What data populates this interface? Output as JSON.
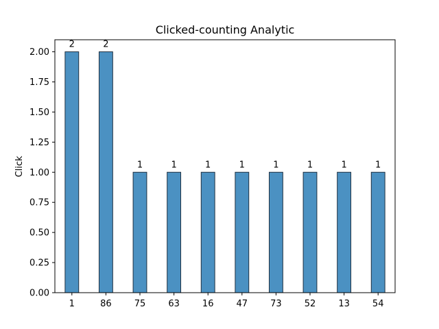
{
  "chart_data": {
    "type": "bar",
    "title": "Clicked-counting Analytic",
    "xlabel": "",
    "ylabel": "Click",
    "categories": [
      "1",
      "86",
      "75",
      "63",
      "16",
      "47",
      "73",
      "52",
      "13",
      "54"
    ],
    "values": [
      2,
      2,
      1,
      1,
      1,
      1,
      1,
      1,
      1,
      1
    ],
    "data_labels": [
      "2",
      "2",
      "1",
      "1",
      "1",
      "1",
      "1",
      "1",
      "1",
      "1"
    ],
    "ylim": [
      0,
      2.1
    ],
    "yticks": [
      0,
      0.25,
      0.5,
      0.75,
      1.0,
      1.25,
      1.5,
      1.75,
      2.0
    ],
    "ytick_labels": [
      "0.00",
      "0.25",
      "0.50",
      "0.75",
      "1.00",
      "1.25",
      "1.50",
      "1.75",
      "2.00"
    ],
    "grid": false,
    "legend": "none",
    "colors": {
      "bar_fill": "#4b91c2",
      "bar_edge": "#1f2f3f",
      "axis": "#000000"
    }
  }
}
